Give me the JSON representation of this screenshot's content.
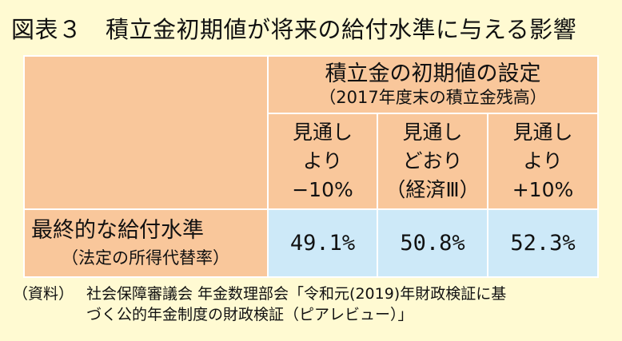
{
  "title": "図表３　積立金初期値が将来の給付水準に与える影響",
  "table": {
    "header_main": "積立金の初期値の設定",
    "header_sub": "（2017年度末の積立金残高）",
    "scenarios": [
      {
        "l1": "見通し",
        "l2": "より",
        "l3": "−10%"
      },
      {
        "l1": "見通し",
        "l2": "どおり",
        "l3": "（経済Ⅲ）"
      },
      {
        "l1": "見通し",
        "l2": "より",
        "l3": "+10%"
      }
    ],
    "row_label_main": "最終的な給付水準",
    "row_label_sub": "（法定の所得代替率）",
    "values": [
      "49.1%",
      "50.8%",
      "52.3%"
    ]
  },
  "note": {
    "label": "（資料）",
    "line1": "社会保障審議会 年金数理部会「令和元(2019)年財政検証に基",
    "line2": "づく公的年金制度の財政検証（ピアレビュー）」"
  },
  "colors": {
    "background": "#FFFAD2",
    "header_fill": "#F9C79B",
    "value_fill": "#CDE9F8"
  }
}
